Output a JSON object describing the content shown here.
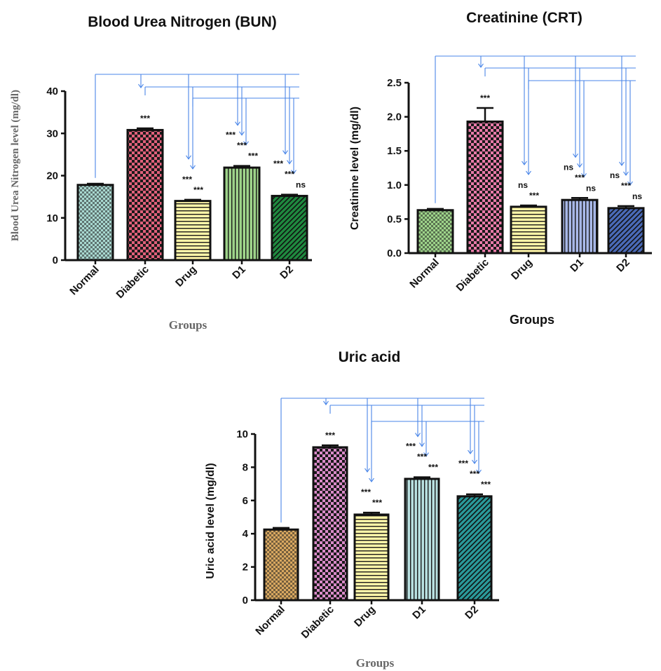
{
  "chart_data": [
    {
      "type": "bar",
      "title": "Blood Urea Nitrogen (BUN)",
      "ylabel": "Blood Urea Nitrogen level (mg/dl)",
      "xlabel": "Groups",
      "categories": [
        "Normal",
        "Diabetic",
        "Drug",
        "D1",
        "D2"
      ],
      "values": [
        17.8,
        30.8,
        14.0,
        21.9,
        15.2
      ],
      "errors": [
        0.3,
        0.4,
        0.3,
        0.4,
        0.3
      ],
      "ylim": [
        0,
        40
      ],
      "yticks": [
        "0",
        "10",
        "20",
        "30",
        "40"
      ],
      "significance": [
        {
          "category": "Diabetic",
          "labels": [
            "***"
          ]
        },
        {
          "category": "Drug",
          "labels": [
            "***",
            "***"
          ]
        },
        {
          "category": "D1",
          "labels": [
            "***",
            "***",
            "***"
          ]
        },
        {
          "category": "D2",
          "labels": [
            "***",
            "***",
            "ns"
          ]
        }
      ],
      "colors": [
        "#a8d8d0",
        "#e0607a",
        "#fff6a8",
        "#9ed48a",
        "#1f8a3f"
      ],
      "patterns": [
        "checker-small",
        "checker",
        "hlines",
        "vlines",
        "diag"
      ]
    },
    {
      "type": "bar",
      "title": "Creatinine (CRT)",
      "ylabel": "Creatinine level (mg/dl)",
      "xlabel": "Groups",
      "categories": [
        "Normal",
        "Diabetic",
        "Drug",
        "D1",
        "D2"
      ],
      "values": [
        0.63,
        1.93,
        0.68,
        0.78,
        0.66
      ],
      "errors": [
        0.02,
        0.2,
        0.02,
        0.03,
        0.03
      ],
      "ylim": [
        0,
        2.5
      ],
      "yticks": [
        "0.0",
        "0.5",
        "1.0",
        "1.5",
        "2.0",
        "2.5"
      ],
      "significance": [
        {
          "category": "Diabetic",
          "labels": [
            "***"
          ]
        },
        {
          "category": "Drug",
          "labels": [
            "ns",
            "***"
          ]
        },
        {
          "category": "D1",
          "labels": [
            "ns",
            "***",
            "ns"
          ]
        },
        {
          "category": "D2",
          "labels": [
            "ns",
            "***",
            "ns"
          ]
        }
      ],
      "colors": [
        "#9ed48a",
        "#e87aa8",
        "#fff6a8",
        "#a8b8e8",
        "#4a6ab8"
      ],
      "patterns": [
        "checker-small",
        "checker",
        "hlines",
        "vlines",
        "diag"
      ]
    },
    {
      "type": "bar",
      "title": "Uric acid",
      "ylabel": "Uric acid level (mg/dl)",
      "xlabel": "Groups",
      "categories": [
        "Normal",
        "Diabetic",
        "Drug",
        "D1",
        "D2"
      ],
      "values": [
        4.25,
        9.2,
        5.15,
        7.3,
        6.25
      ],
      "errors": [
        0.1,
        0.12,
        0.12,
        0.1,
        0.12
      ],
      "ylim": [
        0,
        10
      ],
      "yticks": [
        "0",
        "2",
        "4",
        "6",
        "8",
        "10"
      ],
      "significance": [
        {
          "category": "Diabetic",
          "labels": [
            "***"
          ]
        },
        {
          "category": "Drug",
          "labels": [
            "***",
            "***"
          ]
        },
        {
          "category": "D1",
          "labels": [
            "***",
            "***",
            "***"
          ]
        },
        {
          "category": "D2",
          "labels": [
            "***",
            "***",
            "***"
          ]
        }
      ],
      "colors": [
        "#d9a860",
        "#d98ac8",
        "#fff6a8",
        "#b8e0e0",
        "#2a9a9a"
      ],
      "patterns": [
        "checker-small",
        "checker",
        "hlines",
        "vlines",
        "diag"
      ]
    }
  ]
}
